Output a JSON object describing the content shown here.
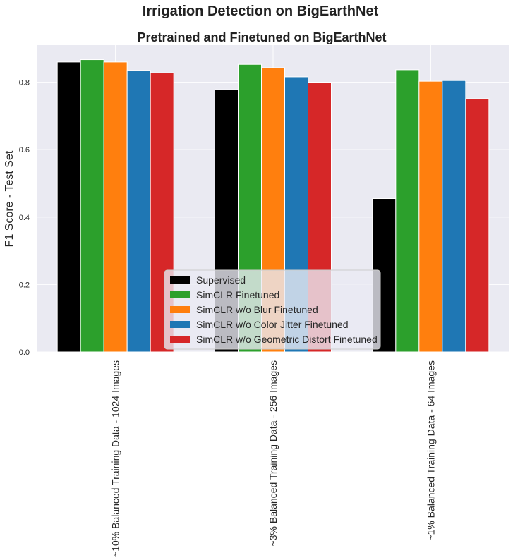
{
  "chart_data": {
    "type": "bar",
    "suptitle": "Irrigation Detection on BigEarthNet",
    "title": "Pretrained and Finetuned on BigEarthNet",
    "xlabel": "",
    "ylabel": "F1 Score - Test Set",
    "ylim": [
      0,
      0.91
    ],
    "yticks": [
      "0.0",
      "0.2",
      "0.4",
      "0.6",
      "0.8"
    ],
    "grid": true,
    "legend_position": "bottom-center",
    "categories": [
      "~10% Balanced Training Data - 1024 Images",
      "~3% Balanced Training Data - 256 Images",
      "~1% Balanced Training Data - 64 Images"
    ],
    "series": [
      {
        "name": "Supervised",
        "color": "#000000",
        "values": [
          0.86,
          0.778,
          0.455
        ]
      },
      {
        "name": "SimCLR Finetuned",
        "color": "#2ca02c",
        "values": [
          0.867,
          0.853,
          0.837
        ]
      },
      {
        "name": "SimCLR w/o Blur Finetuned",
        "color": "#ff7f0e",
        "values": [
          0.86,
          0.843,
          0.803
        ]
      },
      {
        "name": "SimCLR w/o Color Jitter Finetuned",
        "color": "#1f77b4",
        "values": [
          0.835,
          0.816,
          0.805
        ]
      },
      {
        "name": "SimCLR w/o Geometric Distort Finetuned",
        "color": "#d62728",
        "values": [
          0.828,
          0.8,
          0.751
        ]
      }
    ]
  }
}
